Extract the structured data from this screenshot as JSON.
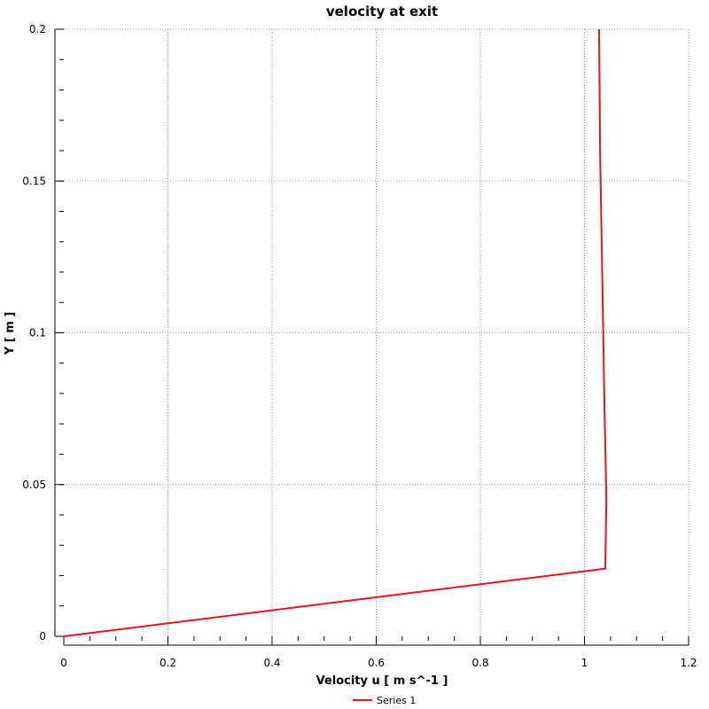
{
  "chart_data": {
    "type": "line",
    "title": "velocity at exit",
    "xlabel": "Velocity u [ m s^-1 ]",
    "ylabel": "Y [ m ]",
    "xlim": [
      0,
      1.2
    ],
    "ylim": [
      0,
      0.2
    ],
    "xticks": [
      "0",
      "0.2",
      "0.4",
      "0.6",
      "0.8",
      "1",
      "1.2"
    ],
    "yticks": [
      "0",
      "0.05",
      "0.1",
      "0.15",
      "0.2"
    ],
    "grid": true,
    "legend_position": "bottom-center",
    "series": [
      {
        "name": "Series 1",
        "color": "#e8141b",
        "x": [
          0,
          1.04,
          1.042,
          1.038,
          1.034,
          1.03,
          1.028
        ],
        "y": [
          0,
          0.0223,
          0.045,
          0.08,
          0.12,
          0.16,
          0.2
        ]
      }
    ]
  }
}
